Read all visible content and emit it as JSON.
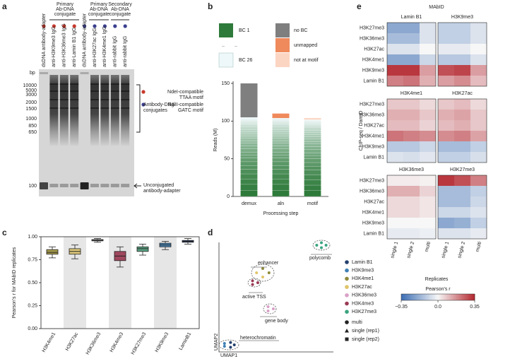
{
  "panel_labels": [
    "a",
    "b",
    "c",
    "d",
    "e"
  ],
  "gel": {
    "lane_groups": [
      {
        "label": [
          "Primary",
          "Ab-DNA",
          "conjugate"
        ]
      },
      {
        "label": [
          "Primary",
          "Ab-DNA",
          "conjugate"
        ]
      },
      {
        "label": [
          "Secondary",
          "Ab-DNA",
          "conjugate"
        ]
      }
    ],
    "lanes": [
      {
        "label": "dsDNA antibody-adapter",
        "motif": 0
      },
      {
        "label": "anti-H3K9me3 IgG",
        "motif": 0
      },
      {
        "label": "anti-H3K36me3 IgG",
        "motif": 0
      },
      {
        "label": "anti-Lamin B1 IgG",
        "motif": 0
      },
      {
        "label": "dsDNA antibody-adapter",
        "motif": 1
      },
      {
        "label": "anti-H3K27ac IgG",
        "motif": 1
      },
      {
        "label": "anti-H3K4me1 IgG",
        "motif": 1
      },
      {
        "label": "anti-rabbit IgG",
        "motif": 1
      },
      {
        "label": "anti-rabbit IgG",
        "motif": 1
      }
    ],
    "legend": [
      {
        "label": [
          "NdeI-compatible",
          "TTAA motif"
        ],
        "color": "#c8382c"
      },
      {
        "label": [
          "BglII-compatible",
          "GATC motif"
        ],
        "color": "#3a3f8f"
      }
    ],
    "bp_label": "bp",
    "ladder": [
      10000,
      5000,
      3000,
      2000,
      1500,
      1000,
      850,
      650,
      100
    ],
    "annotations": [
      [
        "Antibody-DNA",
        "conjugates"
      ],
      [
        "Unconjugated",
        "antibody-adapter"
      ]
    ]
  },
  "chart_data": [
    {
      "type": "stacked_bar",
      "x_label": "Processing step",
      "y_label": "Reads (M)",
      "categories": [
        "demux",
        "aln",
        "motif"
      ],
      "ylim": [
        0,
        150
      ],
      "yticks": [
        0,
        50,
        100,
        150
      ],
      "barcodes": {
        "names": [
          "BC 1",
          "BC 26"
        ],
        "ellipsis": "..",
        "colors": [
          "#2e7a3a",
          "#eef7f9"
        ],
        "values": [
          [
            8,
            8,
            7,
            7,
            6,
            5,
            5,
            5,
            4,
            4,
            4,
            4,
            4,
            3,
            3,
            3,
            3,
            3,
            3,
            3,
            3,
            2,
            2,
            2,
            2,
            2
          ],
          [
            8,
            8,
            7,
            7,
            6,
            5,
            5,
            5,
            4,
            4,
            4,
            4,
            4,
            3,
            3,
            3,
            3,
            3,
            3,
            3,
            3,
            2,
            2,
            2,
            2,
            1
          ],
          [
            8,
            7,
            7,
            7,
            6,
            5,
            5,
            5,
            4,
            4,
            4,
            4,
            4,
            3,
            3,
            3,
            3,
            3,
            3,
            3,
            2,
            2,
            2,
            2,
            2,
            1
          ]
        ]
      },
      "series": [
        {
          "name": "no BC",
          "color": "#7f7f7f",
          "values": [
            45,
            0,
            0
          ]
        },
        {
          "name": "unmapped",
          "color": "#ef8a5c",
          "values": [
            0,
            6,
            0
          ]
        },
        {
          "name": "not at motif",
          "color": "#fbd5c2",
          "values": [
            0,
            0,
            2
          ]
        }
      ]
    },
    {
      "type": "box",
      "y_label": "Pearson's r for MAbID replicates",
      "categories": [
        "H3K4me1",
        "H3K27ac",
        "H3K36me3",
        "H3K4me3",
        "H3K27me3",
        "H3K9me3",
        "LaminB1"
      ],
      "colors": [
        "#a89d4e",
        "#dcc77a",
        "#9a9a9a",
        "#a0485e",
        "#5aa383",
        "#4a88b8",
        "#2b4478"
      ],
      "whislo": [
        0.77,
        0.76,
        0.94,
        0.67,
        0.8,
        0.86,
        0.92
      ],
      "q1": [
        0.81,
        0.81,
        0.955,
        0.74,
        0.84,
        0.89,
        0.94
      ],
      "median": [
        0.83,
        0.84,
        0.96,
        0.79,
        0.87,
        0.91,
        0.95
      ],
      "q3": [
        0.86,
        0.87,
        0.97,
        0.84,
        0.89,
        0.93,
        0.96
      ],
      "whishi": [
        0.89,
        0.91,
        0.98,
        0.89,
        0.92,
        0.95,
        0.98
      ],
      "ylim": [
        0,
        1
      ],
      "yticks": [
        {
          "value": 0,
          "label": "0.00"
        },
        {
          "value": 0.25,
          "label": "0.25"
        },
        {
          "value": 0.5,
          "label": "0.50"
        },
        {
          "value": 0.75,
          "label": "0.75"
        },
        {
          "value": 1,
          "label": "1.00"
        }
      ]
    },
    {
      "type": "heatmap",
      "title": "MAbID",
      "y_label": "ChIP-seq / DamID",
      "x_label": "Replicates",
      "rows": [
        "H3K27me3",
        "H3K36me3",
        "H3K27ac",
        "H3K4me1",
        "H3K9me3",
        "Lamin B1"
      ],
      "columns": [
        "single 1",
        "single 2",
        "multi"
      ],
      "panels": [
        {
          "title": "Lamin B1",
          "values": [
            [
              -0.2,
              -0.2,
              -0.05
            ],
            [
              -0.15,
              -0.15,
              -0.05
            ],
            [
              -0.05,
              -0.05,
              0
            ],
            [
              -0.2,
              -0.2,
              -0.08
            ],
            [
              0.32,
              0.32,
              0.15
            ],
            [
              0.2,
              0.22,
              0.12
            ]
          ]
        },
        {
          "title": "H3K9me3",
          "values": [
            [
              -0.1,
              -0.1,
              -0.05
            ],
            [
              -0.1,
              -0.1,
              -0.05
            ],
            [
              -0.03,
              -0.03,
              0
            ],
            [
              -0.12,
              -0.12,
              -0.05
            ],
            [
              0.28,
              0.3,
              0.15
            ],
            [
              0.15,
              0.18,
              0.1
            ]
          ]
        },
        {
          "title": "H3K4me1",
          "values": [
            [
              0.08,
              0.08,
              0.05
            ],
            [
              0.12,
              0.12,
              0.08
            ],
            [
              0.1,
              0.1,
              0.06
            ],
            [
              0.22,
              0.2,
              0.18
            ],
            [
              -0.12,
              -0.12,
              -0.08
            ],
            [
              -0.05,
              -0.06,
              -0.04
            ]
          ]
        },
        {
          "title": "H3K27ac",
          "values": [
            [
              0.08,
              0.1,
              0.05
            ],
            [
              0.12,
              0.14,
              0.08
            ],
            [
              0.1,
              0.12,
              0.08
            ],
            [
              0.18,
              0.2,
              0.14
            ],
            [
              -0.15,
              -0.15,
              -0.1
            ],
            [
              -0.1,
              -0.1,
              -0.06
            ]
          ]
        },
        {
          "title": "H3K36me3",
          "values": [
            [
              0.02,
              0.02,
              0.01
            ],
            [
              0.12,
              0.12,
              0.06
            ],
            [
              0.05,
              0.05,
              0.03
            ],
            [
              0.05,
              0.05,
              0.03
            ],
            [
              0,
              0,
              0
            ],
            [
              -0.03,
              -0.03,
              -0.02
            ]
          ]
        },
        {
          "title": "H3K27me3",
          "values": [
            [
              0.32,
              0.28,
              0.2
            ],
            [
              -0.15,
              -0.15,
              -0.1
            ],
            [
              -0.15,
              -0.15,
              -0.08
            ],
            [
              -0.08,
              -0.08,
              -0.05
            ],
            [
              -0.2,
              -0.18,
              -0.1
            ],
            [
              -0.05,
              -0.05,
              -0.03
            ]
          ]
        }
      ],
      "colorbar": {
        "label": "Pearson's r",
        "lim": [
          -0.35,
          0.35
        ],
        "colors": [
          "#3b6db3",
          "#f7f7f7",
          "#b3262e"
        ],
        "ticks": [
          {
            "value": -0.35,
            "label": "−0.35"
          },
          {
            "value": 0,
            "label": "0.0"
          },
          0.35
        ]
      }
    }
  ],
  "umap": {
    "axes": [
      "UMAP1",
      "UMAP2"
    ],
    "clusters": [
      "enhancer",
      "active TSS",
      "gene body",
      "polycomb",
      "heterochromatin"
    ],
    "legend": [
      {
        "label": "Lamin B1",
        "color": "#24406e"
      },
      {
        "label": "H3K9me3",
        "color": "#3f7fb5"
      },
      {
        "label": "H3K4me1",
        "color": "#8f8a3c"
      },
      {
        "label": "H3K27ac",
        "color": "#e0c46a"
      },
      {
        "label": "H3K36me3",
        "color": "#d9a0c8"
      },
      {
        "label": "H3K4me3",
        "color": "#9a3a55"
      },
      {
        "label": "H3K27me3",
        "color": "#3aa47e"
      }
    ],
    "shapes": [
      "multi",
      "single (rep1)",
      "single (rep2)"
    ]
  }
}
